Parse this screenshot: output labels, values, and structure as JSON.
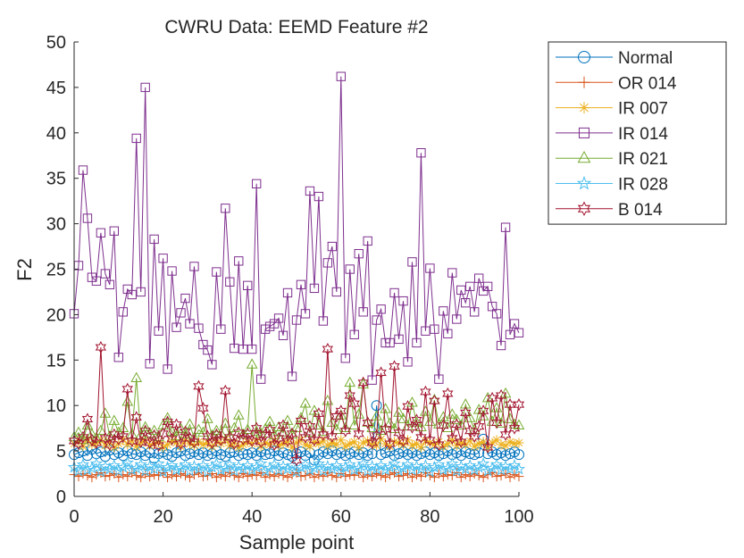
{
  "chart_data": {
    "type": "line",
    "title": "CWRU Data: EEMD Feature #2",
    "xlabel": "Sample point",
    "ylabel": "F2",
    "xlim": [
      0,
      100
    ],
    "ylim": [
      0,
      50
    ],
    "xticks": [
      "0",
      "20",
      "40",
      "60",
      "80",
      "100"
    ],
    "yticks": [
      "0",
      "5",
      "10",
      "15",
      "20",
      "25",
      "30",
      "35",
      "40",
      "45",
      "50"
    ],
    "legend_position": "outside-top-right",
    "x": [
      0,
      1,
      2,
      3,
      4,
      5,
      6,
      7,
      8,
      9,
      10,
      11,
      12,
      13,
      14,
      15,
      16,
      17,
      18,
      19,
      20,
      21,
      22,
      23,
      24,
      25,
      26,
      27,
      28,
      29,
      30,
      31,
      32,
      33,
      34,
      35,
      36,
      37,
      38,
      39,
      40,
      41,
      42,
      43,
      44,
      45,
      46,
      47,
      48,
      49,
      50,
      51,
      52,
      53,
      54,
      55,
      56,
      57,
      58,
      59,
      60,
      61,
      62,
      63,
      64,
      65,
      66,
      67,
      68,
      69,
      70,
      71,
      72,
      73,
      74,
      75,
      76,
      77,
      78,
      79,
      80,
      81,
      82,
      83,
      84,
      85,
      86,
      87,
      88,
      89,
      90,
      91,
      92,
      93,
      94,
      95,
      96,
      97,
      98,
      99,
      100
    ],
    "series": [
      {
        "name": "Normal",
        "color": "#0072BD",
        "marker": "circle",
        "values": [
          4.6,
          4.8,
          5.0,
          4.5,
          5.2,
          4.7,
          4.9,
          4.4,
          5.1,
          4.6,
          4.8,
          4.5,
          5.0,
          4.7,
          4.6,
          4.9,
          4.5,
          4.8,
          4.2,
          4.7,
          4.9,
          4.6,
          4.4,
          4.8,
          5.0,
          4.5,
          4.7,
          4.9,
          4.6,
          4.8,
          4.5,
          4.7,
          5.0,
          4.6,
          4.4,
          4.8,
          4.9,
          4.5,
          4.7,
          4.6,
          4.8,
          4.5,
          4.9,
          4.6,
          4.7,
          5.0,
          4.5,
          4.8,
          4.6,
          4.4,
          4.7,
          4.9,
          4.5,
          4.8,
          4.0,
          4.6,
          4.9,
          4.7,
          5.0,
          4.6,
          4.8,
          4.5,
          4.7,
          4.9,
          4.6,
          4.8,
          4.5,
          4.7,
          10.0,
          4.6,
          4.8,
          5.0,
          4.5,
          4.7,
          4.9,
          4.6,
          4.8,
          4.5,
          4.7,
          4.9,
          4.6,
          4.8,
          4.5,
          4.7,
          5.0,
          4.6,
          4.8,
          4.5,
          4.9,
          4.7,
          4.6,
          4.8,
          6.3,
          4.7,
          4.9,
          4.6,
          4.8,
          4.5,
          4.7,
          4.9,
          4.6
        ]
      },
      {
        "name": "OR 014",
        "color": "#D95319",
        "marker": "plus",
        "values": [
          2.4,
          2.2,
          2.5,
          2.3,
          2.1,
          2.4,
          2.6,
          2.2,
          2.3,
          2.5,
          2.1,
          2.4,
          2.2,
          2.6,
          2.3,
          2.1,
          2.5,
          2.2,
          2.4,
          2.3,
          2.6,
          2.1,
          2.4,
          2.2,
          2.5,
          2.3,
          2.1,
          2.4,
          2.6,
          2.2,
          2.3,
          2.5,
          2.1,
          2.4,
          2.2,
          2.6,
          2.3,
          2.1,
          2.5,
          2.2,
          2.4,
          2.3,
          2.6,
          2.1,
          2.4,
          2.2,
          2.5,
          2.3,
          2.1,
          2.4,
          2.6,
          2.2,
          2.3,
          2.5,
          2.1,
          2.4,
          2.2,
          2.6,
          2.3,
          2.1,
          2.5,
          2.2,
          2.4,
          2.3,
          2.6,
          2.1,
          2.4,
          2.2,
          2.5,
          2.3,
          2.1,
          2.4,
          2.6,
          2.2,
          2.3,
          2.5,
          2.1,
          2.4,
          2.2,
          2.6,
          2.3,
          2.1,
          2.5,
          2.2,
          2.4,
          2.3,
          2.6,
          2.1,
          2.4,
          2.2,
          2.5,
          2.3,
          2.1,
          2.4,
          2.6,
          2.2,
          2.3,
          2.5,
          2.1,
          2.4,
          2.2
        ]
      },
      {
        "name": "IR 007",
        "color": "#EDB120",
        "marker": "asterisk",
        "values": [
          5.8,
          6.1,
          5.5,
          6.3,
          5.7,
          5.9,
          6.2,
          5.6,
          6.0,
          5.4,
          5.8,
          6.3,
          5.7,
          6.1,
          5.5,
          5.9,
          6.2,
          5.6,
          5.8,
          6.0,
          5.4,
          5.7,
          6.1,
          5.9,
          5.5,
          6.2,
          5.8,
          5.6,
          6.0,
          5.7,
          5.9,
          5.5,
          6.1,
          5.8,
          6.3,
          5.6,
          5.9,
          5.4,
          5.7,
          6.0,
          5.8,
          6.2,
          5.5,
          5.9,
          5.7,
          6.1,
          5.6,
          5.8,
          6.0,
          5.4,
          5.9,
          6.2,
          5.7,
          5.5,
          6.0,
          5.8,
          6.1,
          5.6,
          5.9,
          5.7,
          6.2,
          5.5,
          5.8,
          6.0,
          5.4,
          5.9,
          6.1,
          5.7,
          5.6,
          6.3,
          5.8,
          5.5,
          6.0,
          5.9,
          5.7,
          6.2,
          5.6,
          5.8,
          5.4,
          6.1,
          5.9,
          5.7,
          6.0,
          5.5,
          5.8,
          6.2,
          5.6,
          5.9,
          5.7,
          6.1,
          5.5,
          5.8,
          6.0,
          5.4,
          5.9,
          6.2,
          5.7,
          5.6,
          6.0,
          5.8,
          5.9
        ]
      },
      {
        "name": "IR 014",
        "color": "#7E2F8E",
        "marker": "square",
        "values": [
          20.1,
          25.4,
          35.9,
          30.6,
          24.1,
          23.7,
          29.0,
          24.5,
          23.3,
          29.2,
          15.3,
          20.3,
          22.8,
          22.2,
          39.4,
          22.5,
          45.0,
          14.6,
          28.3,
          18.2,
          26.2,
          14.0,
          24.8,
          18.6,
          20.2,
          21.8,
          19.0,
          25.3,
          18.5,
          16.7,
          16.1,
          14.5,
          24.7,
          18.4,
          31.7,
          23.6,
          16.3,
          25.9,
          16.2,
          23.2,
          16.2,
          34.4,
          12.9,
          18.4,
          18.7,
          19.0,
          19.6,
          17.7,
          22.4,
          13.2,
          19.4,
          23.3,
          20.1,
          33.6,
          22.9,
          33.0,
          19.3,
          25.7,
          27.5,
          22.5,
          46.2,
          15.2,
          25.0,
          17.8,
          26.7,
          20.3,
          28.1,
          12.8,
          19.4,
          20.6,
          16.9,
          16.9,
          22.4,
          17.3,
          21.5,
          14.8,
          25.8,
          16.9,
          37.8,
          18.2,
          25.1,
          18.4,
          12.9,
          20.4,
          17.9,
          24.6,
          19.5,
          22.7,
          21.3,
          23.1,
          20.3,
          24.0,
          22.6,
          23.1,
          20.9,
          20.1,
          16.6,
          29.6,
          17.8,
          19.0,
          18.0
        ]
      },
      {
        "name": "IR 021",
        "color": "#77AC30",
        "marker": "triangle",
        "values": [
          6.5,
          7.0,
          6.2,
          7.8,
          6.8,
          6.4,
          7.2,
          9.1,
          6.6,
          8.3,
          7.0,
          7.5,
          10.4,
          6.8,
          13.0,
          6.7,
          7.6,
          6.9,
          7.2,
          6.5,
          7.8,
          8.6,
          7.1,
          6.6,
          7.4,
          6.8,
          7.9,
          6.4,
          7.3,
          7.0,
          8.5,
          6.7,
          7.2,
          6.9,
          8.0,
          6.6,
          7.5,
          8.9,
          6.8,
          7.3,
          14.5,
          7.1,
          6.9,
          7.4,
          8.2,
          6.7,
          7.6,
          7.0,
          8.3,
          6.8,
          7.5,
          8.6,
          10.2,
          7.0,
          9.4,
          7.8,
          7.1,
          10.5,
          8.1,
          7.3,
          8.9,
          7.5,
          12.5,
          7.8,
          9.0,
          12.3,
          8.1,
          7.5,
          8.8,
          7.2,
          9.6,
          8.0,
          7.4,
          9.2,
          8.5,
          7.7,
          10.3,
          8.1,
          7.6,
          9.3,
          8.2,
          10.6,
          7.9,
          8.7,
          7.5,
          9.0,
          8.4,
          7.8,
          10.1,
          8.6,
          7.3,
          9.5,
          8.8,
          10.8,
          8.2,
          9.7,
          8.0,
          11.3,
          8.5,
          7.9,
          7.8
        ]
      },
      {
        "name": "IR 028",
        "color": "#4DBEEE",
        "marker": "pentagram",
        "values": [
          3.2,
          2.8,
          3.5,
          2.9,
          3.1,
          3.6,
          2.7,
          3.3,
          3.0,
          3.4,
          2.8,
          3.2,
          3.7,
          2.9,
          3.1,
          3.5,
          2.8,
          3.3,
          3.0,
          3.6,
          2.7,
          3.2,
          3.4,
          2.9,
          3.1,
          3.5,
          2.8,
          3.3,
          3.0,
          3.4,
          2.7,
          3.2,
          3.6,
          2.9,
          3.1,
          3.5,
          2.8,
          3.3,
          3.0,
          3.4,
          2.9,
          3.2,
          3.6,
          2.8,
          3.1,
          3.5,
          2.9,
          3.3,
          3.0,
          3.4,
          2.7,
          3.2,
          3.5,
          2.9,
          3.1,
          3.6,
          2.8,
          3.3,
          3.0,
          3.4,
          2.7,
          3.2,
          3.5,
          2.9,
          3.1,
          3.6,
          2.8,
          3.3,
          3.0,
          3.4,
          2.9,
          3.2,
          3.6,
          2.8,
          3.1,
          3.5,
          2.9,
          3.3,
          3.0,
          3.4,
          2.7,
          3.2,
          3.5,
          2.9,
          3.1,
          3.6,
          2.8,
          3.3,
          3.0,
          3.4,
          2.9,
          3.2,
          3.6,
          2.8,
          3.1,
          3.5,
          2.9,
          3.3,
          3.0,
          3.4,
          3.0
        ]
      },
      {
        "name": "B 014",
        "color": "#A2142F",
        "marker": "hexagram",
        "values": [
          6.1,
          5.8,
          6.5,
          8.5,
          6.2,
          5.9,
          16.4,
          6.4,
          5.7,
          6.8,
          6.3,
          6.6,
          11.8,
          6.1,
          8.7,
          6.0,
          7.2,
          5.9,
          6.7,
          5.6,
          6.9,
          8.2,
          6.3,
          7.9,
          5.8,
          7.1,
          6.4,
          6.0,
          12.1,
          9.7,
          6.6,
          5.9,
          6.8,
          6.2,
          11.6,
          6.5,
          5.8,
          7.0,
          6.3,
          6.9,
          6.1,
          7.5,
          6.0,
          6.8,
          7.3,
          5.7,
          6.4,
          7.8,
          6.1,
          6.9,
          4.0,
          8.3,
          6.5,
          7.7,
          6.2,
          9.1,
          6.8,
          16.2,
          6.6,
          8.8,
          9.4,
          7.2,
          11.1,
          10.2,
          6.9,
          12.5,
          8.1,
          5.9,
          6.7,
          13.6,
          7.4,
          5.8,
          14.3,
          7.0,
          6.1,
          9.9,
          7.6,
          8.4,
          6.5,
          11.5,
          6.2,
          10.5,
          5.7,
          7.8,
          11.3,
          6.4,
          7.9,
          6.0,
          9.2,
          7.2,
          6.6,
          7.7,
          9.4,
          5.4,
          10.8,
          8.1,
          11.1,
          6.8,
          10.1,
          7.5,
          10.1
        ]
      }
    ]
  }
}
